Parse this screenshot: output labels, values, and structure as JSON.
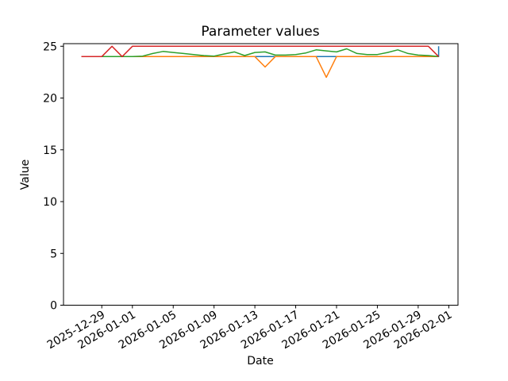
{
  "chart_data": {
    "type": "line",
    "title": "Parameter values",
    "xlabel": "Date",
    "ylabel": "Value",
    "background_color": "#ffffff",
    "axes": {
      "ylim": [
        0,
        25.25
      ],
      "yticks": [
        0,
        5,
        10,
        15,
        20,
        25
      ],
      "xlim_days": [
        -1.75,
        36.9
      ],
      "xticks": [
        {
          "day": 2,
          "label": "2025-12-29"
        },
        {
          "day": 5,
          "label": "2026-01-01"
        },
        {
          "day": 9,
          "label": "2026-01-05"
        },
        {
          "day": 13,
          "label": "2026-01-09"
        },
        {
          "day": 17,
          "label": "2026-01-13"
        },
        {
          "day": 21,
          "label": "2026-01-17"
        },
        {
          "day": 25,
          "label": "2026-01-21"
        },
        {
          "day": 29,
          "label": "2026-01-25"
        },
        {
          "day": 33,
          "label": "2026-01-29"
        },
        {
          "day": 36,
          "label": "2026-02-01"
        }
      ],
      "x_tick_rotation_deg": 30,
      "grid": false,
      "legend": "none",
      "spine_color": "#000000"
    },
    "dates": [
      "2025-12-27",
      "2025-12-28",
      "2025-12-29",
      "2025-12-30",
      "2025-12-31",
      "2026-01-01",
      "2026-01-02",
      "2026-01-03",
      "2026-01-04",
      "2026-01-05",
      "2026-01-06",
      "2026-01-07",
      "2026-01-08",
      "2026-01-09",
      "2026-01-10",
      "2026-01-11",
      "2026-01-12",
      "2026-01-13",
      "2026-01-14",
      "2026-01-15",
      "2026-01-16",
      "2026-01-17",
      "2026-01-18",
      "2026-01-19",
      "2026-01-20",
      "2026-01-21",
      "2026-01-22",
      "2026-01-23",
      "2026-01-24",
      "2026-01-25",
      "2026-01-26",
      "2026-01-27",
      "2026-01-28",
      "2026-01-29",
      "2026-01-30",
      "2026-01-31"
    ],
    "series": [
      {
        "name": "blue-line",
        "color": "#1f77b4",
        "end_jump_vertical": true,
        "values": [
          24,
          24,
          24,
          24,
          24,
          24,
          24,
          24,
          24,
          24,
          24,
          24,
          24,
          24,
          24,
          24,
          24,
          24,
          24,
          24,
          24,
          24,
          24,
          24,
          24,
          24,
          24,
          24,
          24,
          24,
          24,
          24,
          24,
          24,
          24,
          25
        ]
      },
      {
        "name": "orange-line",
        "color": "#ff7f0e",
        "end_jump_vertical": false,
        "values": [
          24,
          24,
          24,
          24,
          24,
          24,
          24,
          24,
          24,
          24,
          24,
          24,
          24,
          24,
          24,
          24,
          24,
          24,
          23,
          24,
          24,
          24,
          24,
          24,
          22,
          24,
          24,
          24,
          24,
          24,
          24,
          24,
          24,
          24,
          24,
          24
        ]
      },
      {
        "name": "green-line",
        "color": "#2ca02c",
        "end_jump_vertical": false,
        "values": [
          24,
          24,
          24,
          24,
          24,
          24,
          24.05,
          24.3,
          24.5,
          24.4,
          24.3,
          24.2,
          24.1,
          24.05,
          24.25,
          24.45,
          24.1,
          24.4,
          24.45,
          24.15,
          24.15,
          24.2,
          24.35,
          24.65,
          24.55,
          24.45,
          24.75,
          24.3,
          24.2,
          24.2,
          24.4,
          24.65,
          24.3,
          24.15,
          24.1,
          24
        ]
      },
      {
        "name": "red-line",
        "color": "#d62728",
        "end_jump_vertical": false,
        "values": [
          24,
          24,
          24,
          25,
          24,
          25,
          25,
          25,
          25,
          25,
          25,
          25,
          25,
          25,
          25,
          25,
          25,
          25,
          25,
          25,
          25,
          25,
          25,
          25,
          25,
          25,
          25,
          25,
          25,
          25,
          25,
          25,
          25,
          25,
          25,
          24
        ]
      }
    ]
  }
}
